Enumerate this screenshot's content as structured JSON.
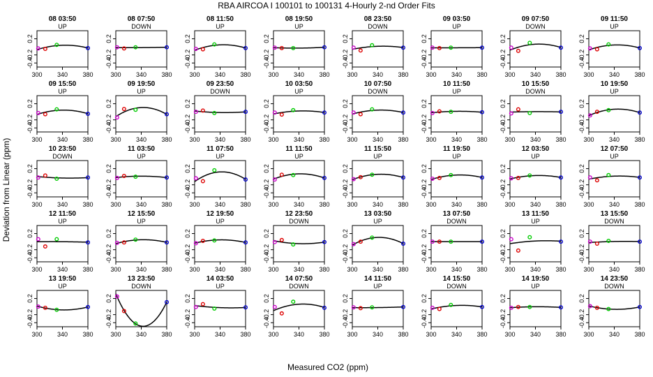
{
  "chart_data": {
    "type": "scatter",
    "title": "RBA   AIRCOA I   100101 to 100131   4-Hourly 2-nd Order Fits",
    "xlabel": "Measured CO2 (ppm)",
    "ylabel": "Deviation from Linear (ppm)",
    "xlim": [
      300,
      380
    ],
    "ylim": [
      -0.5,
      0.4
    ],
    "x_ticks": [
      "300",
      "340",
      "380"
    ],
    "y_ticks": [
      "-0.4",
      "-0.2",
      "0.2"
    ],
    "x_standards": [
      302,
      313,
      331,
      380
    ],
    "standard_colors": [
      "#cc00cc",
      "#dd0000",
      "#00cc00",
      "#0000cc"
    ],
    "curve_color": "#000000",
    "panels": [
      {
        "title": "08 03:50",
        "type": "UP",
        "dev": [
          -0.04,
          -0.05,
          0.05,
          -0.03
        ]
      },
      {
        "title": "08 07:50",
        "type": "DOWN",
        "dev": [
          -0.01,
          -0.04,
          -0.01,
          -0.01
        ]
      },
      {
        "title": "08 11:50",
        "type": "UP",
        "dev": [
          -0.05,
          -0.06,
          0.06,
          -0.03
        ]
      },
      {
        "title": "08 19:50",
        "type": "UP",
        "dev": [
          -0.02,
          -0.03,
          -0.03,
          -0.01
        ]
      },
      {
        "title": "08 23:50",
        "type": "DOWN",
        "dev": [
          -0.02,
          -0.09,
          0.04,
          -0.02
        ]
      },
      {
        "title": "09 03:50",
        "type": "UP",
        "dev": [
          -0.02,
          -0.03,
          -0.02,
          -0.02
        ]
      },
      {
        "title": "09 07:50",
        "type": "DOWN",
        "dev": [
          -0.02,
          -0.1,
          0.1,
          -0.02
        ]
      },
      {
        "title": "09 11:50",
        "type": "UP",
        "dev": [
          -0.04,
          -0.06,
          0.06,
          -0.03
        ]
      },
      {
        "title": "09 15:50",
        "type": "UP",
        "dev": [
          -0.03,
          -0.06,
          0.06,
          -0.05
        ]
      },
      {
        "title": "09 19:50",
        "type": "UP",
        "dev": [
          -0.14,
          0.07,
          0.05,
          -0.06
        ]
      },
      {
        "title": "09 23:50",
        "type": "DOWN",
        "dev": [
          0.0,
          0.03,
          -0.03,
          0.0
        ]
      },
      {
        "title": "10 03:50",
        "type": "UP",
        "dev": [
          -0.02,
          -0.07,
          0.04,
          -0.02
        ]
      },
      {
        "title": "10 07:50",
        "type": "DOWN",
        "dev": [
          -0.02,
          -0.06,
          0.06,
          -0.02
        ]
      },
      {
        "title": "10 11:50",
        "type": "UP",
        "dev": [
          -0.03,
          0.01,
          0.0,
          -0.01
        ]
      },
      {
        "title": "10 15:50",
        "type": "DOWN",
        "dev": [
          -0.04,
          0.06,
          -0.03,
          0.0
        ]
      },
      {
        "title": "10 19:50",
        "type": "UP",
        "dev": [
          -0.09,
          0.0,
          0.04,
          -0.02
        ]
      },
      {
        "title": "10 23:50",
        "type": "DOWN",
        "dev": [
          -0.02,
          0.03,
          -0.05,
          -0.02
        ]
      },
      {
        "title": "11 03:50",
        "type": "UP",
        "dev": [
          -0.03,
          0.02,
          0.0,
          -0.02
        ]
      },
      {
        "title": "11 07:50",
        "type": "UP",
        "dev": [
          -0.04,
          -0.11,
          0.16,
          -0.07
        ]
      },
      {
        "title": "11 11:50",
        "type": "UP",
        "dev": [
          -0.07,
          0.05,
          0.04,
          -0.03
        ]
      },
      {
        "title": "11 15:50",
        "type": "UP",
        "dev": [
          -0.06,
          -0.01,
          0.05,
          -0.02
        ]
      },
      {
        "title": "11 19:50",
        "type": "UP",
        "dev": [
          -0.05,
          -0.03,
          0.04,
          -0.02
        ]
      },
      {
        "title": "12 03:50",
        "type": "UP",
        "dev": [
          -0.04,
          -0.03,
          0.03,
          -0.02
        ]
      },
      {
        "title": "12 07:50",
        "type": "UP",
        "dev": [
          -0.02,
          -0.09,
          0.04,
          -0.02
        ]
      },
      {
        "title": "12 11:50",
        "type": "UP",
        "dev": [
          0.06,
          -0.12,
          0.06,
          -0.02
        ]
      },
      {
        "title": "12 15:50",
        "type": "UP",
        "dev": [
          -0.03,
          -0.02,
          0.05,
          -0.02
        ]
      },
      {
        "title": "12 19:50",
        "type": "UP",
        "dev": [
          -0.04,
          0.02,
          0.03,
          -0.02
        ]
      },
      {
        "title": "12 23:50",
        "type": "DOWN",
        "dev": [
          -0.01,
          0.04,
          -0.07,
          -0.01
        ]
      },
      {
        "title": "13 03:50",
        "type": "UP",
        "dev": [
          -0.06,
          0.0,
          0.1,
          -0.05
        ]
      },
      {
        "title": "13 07:50",
        "type": "DOWN",
        "dev": [
          0.0,
          0.0,
          0.0,
          0.0
        ]
      },
      {
        "title": "13 11:50",
        "type": "UP",
        "dev": [
          0.06,
          -0.22,
          0.11,
          0.0
        ]
      },
      {
        "title": "13 15:50",
        "type": "DOWN",
        "dev": [
          0.0,
          -0.05,
          0.02,
          0.0
        ]
      },
      {
        "title": "13 19:50",
        "type": "UP",
        "dev": [
          0.0,
          -0.03,
          -0.08,
          -0.01
        ]
      },
      {
        "title": "13 23:50",
        "type": "DOWN",
        "dev": [
          0.25,
          -0.11,
          -0.42,
          0.11
        ]
      },
      {
        "title": "14 03:50",
        "type": "UP",
        "dev": [
          -0.01,
          0.06,
          -0.05,
          -0.02
        ]
      },
      {
        "title": "14 07:50",
        "type": "DOWN",
        "dev": [
          -0.01,
          -0.17,
          0.12,
          -0.03
        ]
      },
      {
        "title": "14 11:50",
        "type": "UP",
        "dev": [
          -0.02,
          -0.04,
          -0.02,
          -0.01
        ]
      },
      {
        "title": "14 15:50",
        "type": "DOWN",
        "dev": [
          -0.03,
          -0.06,
          0.04,
          -0.01
        ]
      },
      {
        "title": "14 19:50",
        "type": "UP",
        "dev": [
          -0.03,
          -0.01,
          -0.01,
          -0.02
        ]
      },
      {
        "title": "14 23:50",
        "type": "DOWN",
        "dev": [
          0.01,
          -0.03,
          -0.06,
          -0.01
        ]
      }
    ]
  }
}
